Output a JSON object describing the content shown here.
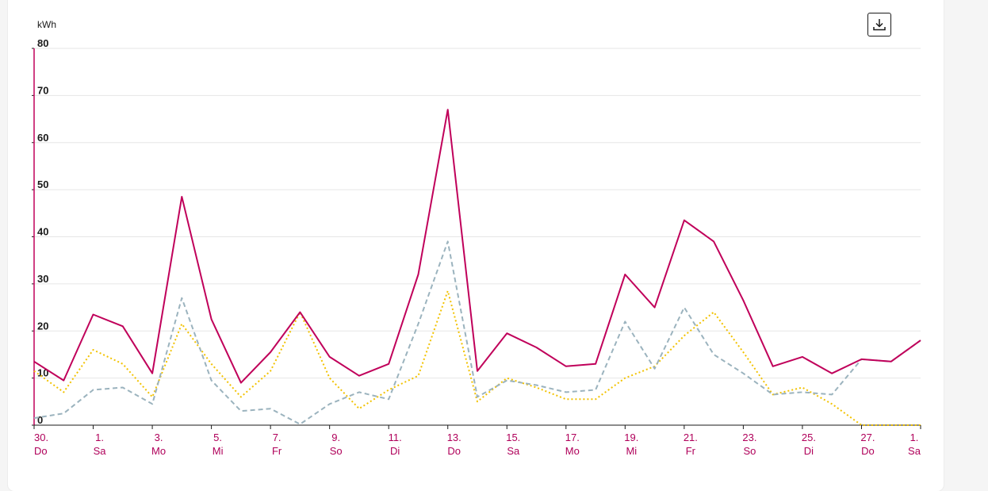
{
  "download": {
    "icon": "download-icon"
  },
  "colors": {
    "series1": "#c0005a",
    "series2": "#9bb3be",
    "series3": "#f2c200",
    "axis": "#c0005a",
    "grid": "#e6e6e6",
    "text": "#1a1a1a"
  },
  "chart_data": {
    "type": "line",
    "ylabel": "kWh",
    "ylim": [
      0,
      80
    ],
    "yticks": [
      "0",
      "10",
      "20",
      "30",
      "40",
      "50",
      "60",
      "70",
      "80"
    ],
    "grid": true,
    "x_ticks": [
      {
        "day": "30.",
        "weekday": "Do"
      },
      {
        "day": "1.",
        "weekday": "Sa"
      },
      {
        "day": "3.",
        "weekday": "Mo"
      },
      {
        "day": "5.",
        "weekday": "Mi"
      },
      {
        "day": "7.",
        "weekday": "Fr"
      },
      {
        "day": "9.",
        "weekday": "So"
      },
      {
        "day": "11.",
        "weekday": "Di"
      },
      {
        "day": "13.",
        "weekday": "Do"
      },
      {
        "day": "15.",
        "weekday": "Sa"
      },
      {
        "day": "17.",
        "weekday": "Mo"
      },
      {
        "day": "19.",
        "weekday": "Mi"
      },
      {
        "day": "21.",
        "weekday": "Fr"
      },
      {
        "day": "23.",
        "weekday": "So"
      },
      {
        "day": "25.",
        "weekday": "Di"
      },
      {
        "day": "27.",
        "weekday": "Do"
      },
      {
        "day": "1.",
        "weekday": "Sa"
      }
    ],
    "series": [
      {
        "style": "solid",
        "values": [
          13.5,
          9.5,
          23.5,
          21,
          11,
          48.5,
          22.5,
          9,
          15.5,
          24,
          14.5,
          10.5,
          13,
          32,
          67,
          11.5,
          19.5,
          16.5,
          12.5,
          13,
          32,
          25,
          43.5,
          39,
          26.5,
          12.5,
          14.5,
          11,
          14,
          13.5,
          18
        ]
      },
      {
        "style": "dashed",
        "values": [
          1.5,
          2.5,
          7.5,
          8,
          4.5,
          27,
          9.5,
          3,
          3.5,
          0.2,
          4.5,
          7,
          5.5,
          21.5,
          39,
          6,
          9.5,
          8.5,
          7,
          7.5,
          22,
          12,
          25,
          15,
          11,
          6.5,
          7,
          6.5,
          14,
          13.5,
          18
        ]
      },
      {
        "style": "dotted",
        "values": [
          11.5,
          7,
          16,
          13,
          6,
          21.5,
          13,
          6,
          11.5,
          24,
          10,
          3.5,
          7.5,
          10.5,
          28.5,
          5,
          10,
          8,
          5.5,
          5.5,
          10,
          12.5,
          19,
          24,
          15.5,
          6.5,
          8,
          4.5,
          0,
          0,
          0
        ]
      }
    ]
  }
}
